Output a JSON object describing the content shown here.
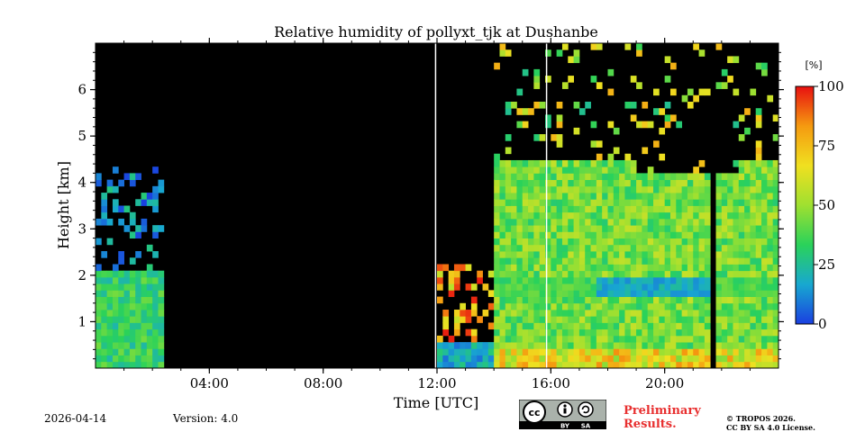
{
  "chart_data": {
    "type": "heatmap",
    "title": "Relative humidity of pollyxt_tjk at Dushanbe",
    "xlabel": "Time [UTC]",
    "ylabel": "Height [km]",
    "x_range_hours": [
      0,
      24
    ],
    "y_range_km": [
      0,
      7
    ],
    "x_ticks": [
      {
        "value": 4,
        "label": "04:00"
      },
      {
        "value": 8,
        "label": "08:00"
      },
      {
        "value": 12,
        "label": "12:00"
      },
      {
        "value": 16,
        "label": "16:00"
      },
      {
        "value": 20,
        "label": "20:00"
      }
    ],
    "y_ticks": [
      {
        "value": 1,
        "label": "1"
      },
      {
        "value": 2,
        "label": "2"
      },
      {
        "value": 3,
        "label": "3"
      },
      {
        "value": 4,
        "label": "4"
      },
      {
        "value": 5,
        "label": "5"
      },
      {
        "value": 6,
        "label": "6"
      }
    ],
    "colorbar": {
      "unit": "[%]",
      "range": [
        0,
        100
      ],
      "ticks": [
        {
          "value": 0,
          "label": "0"
        },
        {
          "value": 25,
          "label": "25"
        },
        {
          "value": 50,
          "label": "50"
        },
        {
          "value": 75,
          "label": "75"
        },
        {
          "value": 100,
          "label": "100"
        }
      ],
      "colors": [
        "#1a3fe0",
        "#18a8d0",
        "#2ad25a",
        "#9fe030",
        "#f0e020",
        "#f59a10",
        "#e81010"
      ]
    },
    "no_data_intervals_hours": [
      [
        2.5,
        11.95
      ],
      [
        16.95,
        17.05
      ],
      [
        21.55,
        21.7
      ]
    ],
    "white_lines_hours": [
      11.95,
      15.85
    ],
    "layer_top_km": 4.5,
    "dry_layer_km": [
      1.5,
      1.9
    ]
  },
  "footer": {
    "date": "2026-04-14",
    "version": "Version: 4.0",
    "preliminary_line1": "Preliminary",
    "preliminary_line2": "Results.",
    "copyright_line1": "© TROPOS 2026.",
    "copyright_line2": "CC BY SA 4.0 License.",
    "license_badge": {
      "cc": "cc",
      "by": "BY",
      "sa": "SA"
    }
  }
}
